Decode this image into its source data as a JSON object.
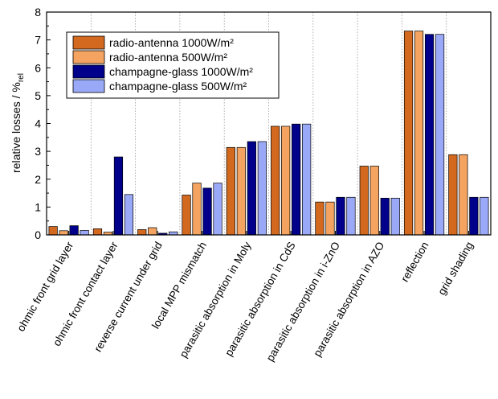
{
  "chart_data": {
    "type": "bar",
    "title": "",
    "xlabel": "",
    "ylabel": "relative losses / %",
    "ylabel_sub": "rel",
    "ylim": [
      0,
      8
    ],
    "yticks": [
      0,
      1,
      2,
      3,
      4,
      5,
      6,
      7,
      8
    ],
    "grid": "vertical dotted separators between categories",
    "legend_position": "top-left",
    "categories": [
      "ohmic front grid layer",
      "ohmic front contact layer",
      "reverse current under grid",
      "local MPP mismatch",
      "parasitic absorption in Moly",
      "parasitic absorption in CdS",
      "parasitic absorption in i-ZnO",
      "parasitic absorption in AZO",
      "reflection",
      "grid shading"
    ],
    "series": [
      {
        "name": "radio-antenna 1000W/m²",
        "color": "#d2691e",
        "values": [
          0.3,
          0.22,
          0.19,
          1.43,
          3.14,
          3.9,
          1.18,
          2.47,
          7.32,
          2.88
        ]
      },
      {
        "name": "radio-antenna 500W/m²",
        "color": "#f4a460",
        "values": [
          0.15,
          0.1,
          0.26,
          1.86,
          3.14,
          3.9,
          1.18,
          2.47,
          7.32,
          2.88
        ]
      },
      {
        "name": "champagne-glass 1000W/m²",
        "color": "#00008b",
        "values": [
          0.33,
          2.8,
          0.06,
          1.68,
          3.35,
          3.98,
          1.35,
          1.32,
          7.2,
          1.35
        ]
      },
      {
        "name": "champagne-glass 500W/m²",
        "color": "#9aa9f7",
        "values": [
          0.16,
          1.45,
          0.11,
          1.86,
          3.35,
          3.98,
          1.35,
          1.32,
          7.2,
          1.35
        ]
      }
    ]
  }
}
